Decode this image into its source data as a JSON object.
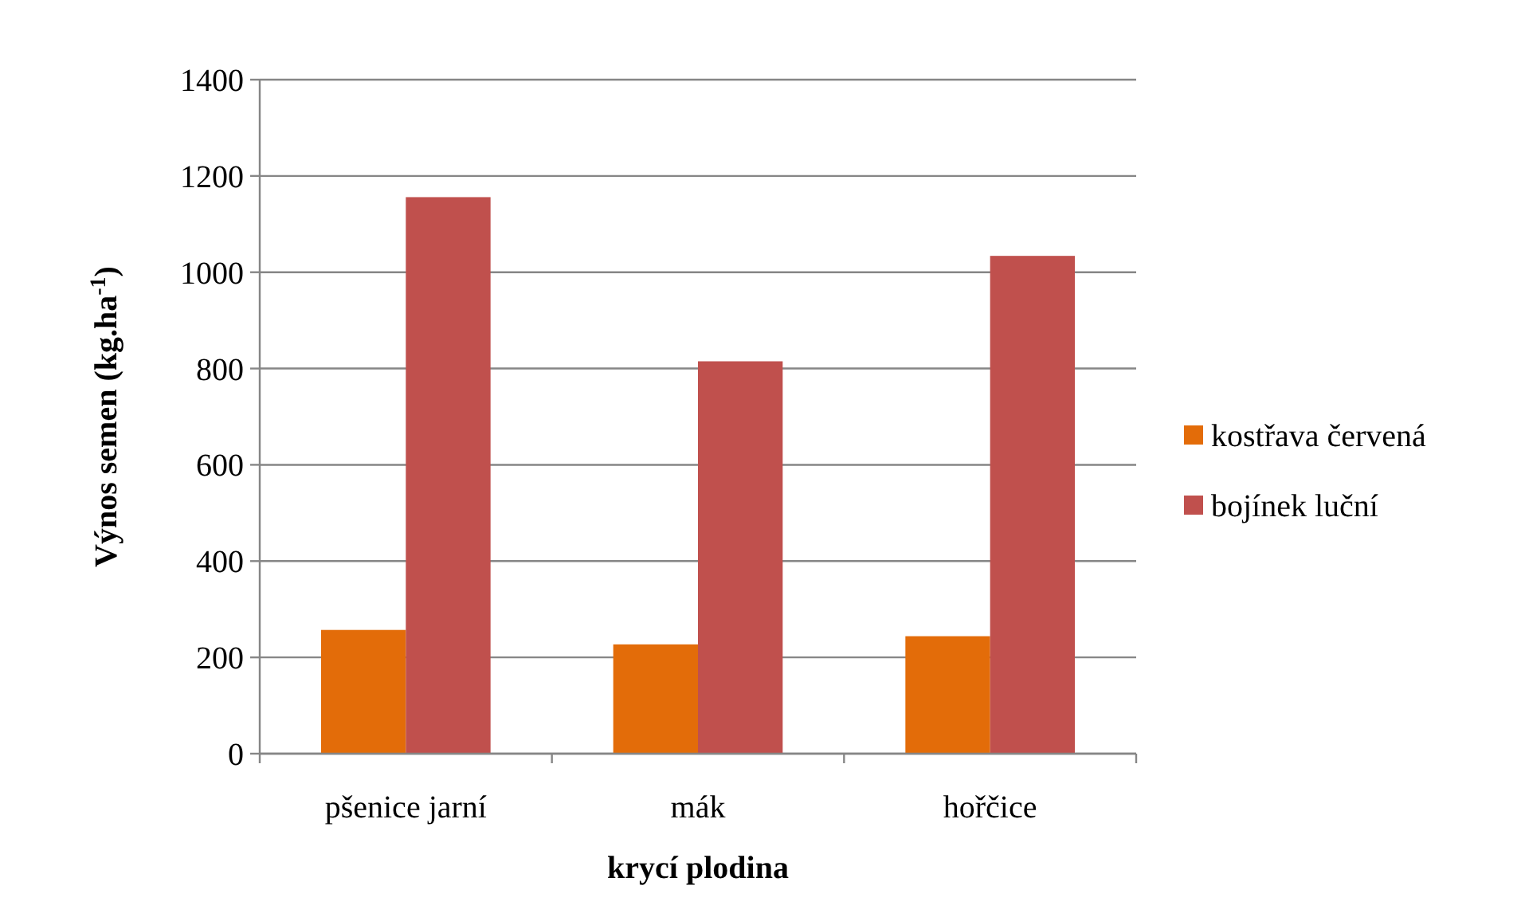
{
  "chart_data": {
    "type": "bar",
    "xlabel": "krycí plodina",
    "ylabel": "Výnos semen (kg.ha$^{-1}$)",
    "categories": [
      "pšenice jarní",
      "mák",
      "hořčice"
    ],
    "series": [
      {
        "name": "kostřava červená",
        "color": "#e36c09",
        "values": [
          257,
          227,
          244
        ]
      },
      {
        "name": "bojínek luční",
        "color": "#c0504d",
        "values": [
          1156,
          815,
          1034
        ]
      }
    ],
    "ylim": [
      0,
      1400
    ],
    "yticks": [
      0,
      200,
      400,
      600,
      800,
      1000,
      1200,
      1400
    ],
    "grid": "y",
    "legend": "right"
  }
}
